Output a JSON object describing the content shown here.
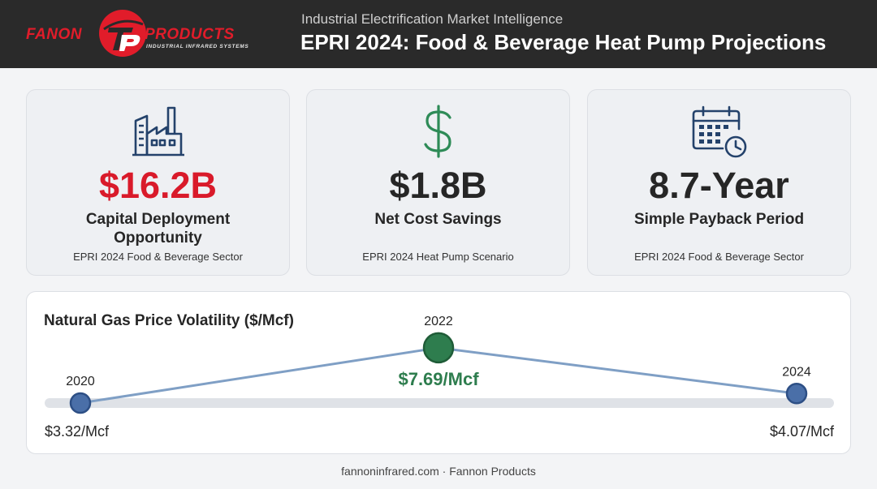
{
  "header": {
    "logo_word_left": "FANON",
    "logo_word_right": "PRODUCTS",
    "logo_tagline": "INDUSTRIAL INFRARED SYSTEMS",
    "subtitle": "Industrial Electrification Market Intelligence",
    "title": "EPRI 2024: Food & Beverage Heat Pump Projections"
  },
  "cards": [
    {
      "icon": "factory-icon",
      "value": "$16.2B",
      "value_color": "#d91a2a",
      "label": "Capital Deployment Opportunity",
      "source": "EPRI 2024 Food & Beverage Sector"
    },
    {
      "icon": "dollar-icon",
      "value": "$1.8B",
      "value_color": "#262626",
      "label": "Net Cost Savings",
      "source": "EPRI 2024 Heat Pump Scenario"
    },
    {
      "icon": "calendar-clock-icon",
      "value": "8.7-Year",
      "value_color": "#262626",
      "label": "Simple Payback Period",
      "source": "EPRI 2024 Food & Beverage Sector"
    }
  ],
  "chart_data": {
    "type": "line",
    "title": "Natural Gas Price Volatility ($/Mcf)",
    "x": [
      "2020",
      "2022",
      "2024"
    ],
    "values": [
      3.32,
      7.69,
      4.07
    ],
    "value_labels": [
      "$3.32/Mcf",
      "$7.69/Mcf",
      "$4.07/Mcf"
    ],
    "highlight_index": 1,
    "colors": {
      "line": "#7f9fc5",
      "point": "#4a6fa8",
      "highlight_point": "#2e7d4e",
      "highlight_text": "#2e7d4e",
      "track": "#dfe2e7"
    }
  },
  "colors": {
    "header_bg": "#2a2a2a",
    "brand_red": "#e11c2a",
    "icon_navy": "#24426b",
    "icon_green": "#2e8b57"
  },
  "footer": {
    "text": "fannoninfrared.com · Fannon Products"
  }
}
